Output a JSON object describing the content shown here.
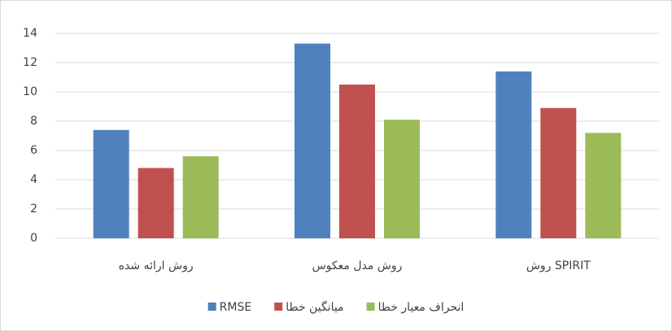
{
  "chart_data": {
    "type": "bar",
    "categories": [
      "روش ارائه شده",
      "روش مدل معکوس",
      "روش SPIRIT"
    ],
    "series": [
      {
        "name": "RMSE",
        "color": "#4f81bd",
        "values": [
          7.4,
          13.3,
          11.4
        ]
      },
      {
        "name": "میانگین خطا",
        "color": "#c0504d",
        "values": [
          4.8,
          10.5,
          8.9
        ]
      },
      {
        "name": "انحراف معیار خطا",
        "color": "#9bbb59",
        "values": [
          5.6,
          8.1,
          7.2
        ]
      }
    ],
    "ylim": [
      0,
      14
    ],
    "yticks": [
      0,
      2,
      4,
      6,
      8,
      10,
      12,
      14
    ],
    "grid": true,
    "legend": "bottom"
  }
}
